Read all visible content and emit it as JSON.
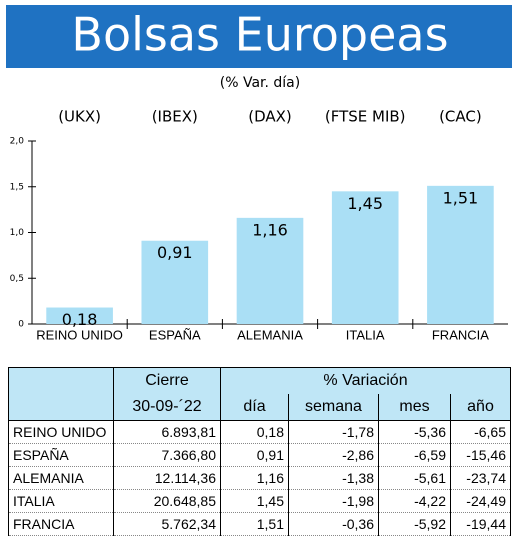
{
  "chart_data": {
    "type": "bar",
    "title": "Bolsas Europeas",
    "subtitle": "(% Var. día)",
    "index_labels": [
      "(UKX)",
      "(IBEX)",
      "(DAX)",
      "(FTSE MIB)",
      "(CAC)"
    ],
    "categories": [
      "REINO UNIDO",
      "ESPAÑA",
      "ALEMANIA",
      "ITALIA",
      "FRANCIA"
    ],
    "values": [
      0.18,
      0.91,
      1.16,
      1.45,
      1.51
    ],
    "value_labels": [
      "0,18",
      "0,91",
      "1,16",
      "1,45",
      "1,51"
    ],
    "color": "#aadff5",
    "ylim": [
      0,
      2
    ],
    "yticks": [
      0,
      {
        "value": 0.5,
        "label": "0,5"
      },
      {
        "value": 1,
        "label": "1,0"
      },
      {
        "value": 1.5,
        "label": "1,5"
      },
      {
        "value": 2,
        "label": "2,0"
      }
    ],
    "grid": false
  },
  "table": {
    "header": [
      "Cierre",
      "% Variación"
    ],
    "subheader": [
      "30-09-´22",
      "día",
      "semana",
      "mes",
      "año"
    ],
    "rows": [
      [
        "REINO UNIDO",
        "6.893,81",
        "0,18",
        "-1,78",
        "-5,36",
        "-6,65"
      ],
      [
        "ESPAÑA",
        "7.366,80",
        "0,91",
        "-2,86",
        "-6,59",
        "-15,46"
      ],
      [
        "ALEMANIA",
        "12.114,36",
        "1,16",
        "-1,38",
        "-5,61",
        "-23,74"
      ],
      [
        "ITALIA",
        "20.648,85",
        "1,45",
        "-1,98",
        "-4,22",
        "-24,49"
      ],
      [
        "FRANCIA",
        "5.762,34",
        "1,51",
        "-0,36",
        "-5,92",
        "-19,44"
      ]
    ]
  }
}
